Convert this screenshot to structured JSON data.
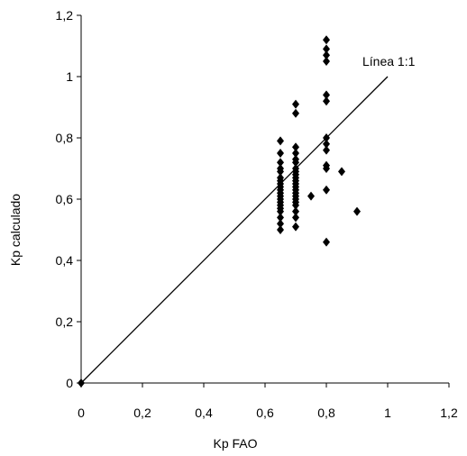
{
  "chart_data": {
    "type": "scatter",
    "title": "",
    "xlabel": "Kp FAO",
    "ylabel": "Kp calculado",
    "xlim": [
      0,
      1.2
    ],
    "ylim": [
      0,
      1.2
    ],
    "xticks": [
      0,
      0.2,
      0.4,
      0.6,
      0.8,
      1,
      1.2
    ],
    "yticks": [
      0,
      0.2,
      0.4,
      0.6,
      0.8,
      1,
      1.2
    ],
    "xtick_labels": [
      "0",
      "0,2",
      "0,4",
      "0,6",
      "0,8",
      "1",
      "1,2"
    ],
    "ytick_labels": [
      "0",
      "0,2",
      "0,4",
      "0,6",
      "0,8",
      "1",
      "1,2"
    ],
    "grid": false,
    "marker": "diamond",
    "marker_color": "#000000",
    "reference_line": {
      "label": "Línea 1:1",
      "from": [
        0,
        0
      ],
      "to": [
        1,
        1
      ]
    },
    "points": [
      [
        0,
        0
      ],
      [
        0.65,
        0.79
      ],
      [
        0.65,
        0.75
      ],
      [
        0.65,
        0.72
      ],
      [
        0.65,
        0.7
      ],
      [
        0.65,
        0.69
      ],
      [
        0.65,
        0.67
      ],
      [
        0.65,
        0.66
      ],
      [
        0.65,
        0.65
      ],
      [
        0.65,
        0.64
      ],
      [
        0.65,
        0.63
      ],
      [
        0.65,
        0.62
      ],
      [
        0.65,
        0.61
      ],
      [
        0.65,
        0.6
      ],
      [
        0.65,
        0.59
      ],
      [
        0.65,
        0.58
      ],
      [
        0.65,
        0.57
      ],
      [
        0.65,
        0.56
      ],
      [
        0.65,
        0.54
      ],
      [
        0.65,
        0.52
      ],
      [
        0.65,
        0.5
      ],
      [
        0.7,
        0.91
      ],
      [
        0.7,
        0.88
      ],
      [
        0.7,
        0.77
      ],
      [
        0.7,
        0.75
      ],
      [
        0.7,
        0.73
      ],
      [
        0.7,
        0.72
      ],
      [
        0.7,
        0.7
      ],
      [
        0.7,
        0.69
      ],
      [
        0.7,
        0.68
      ],
      [
        0.7,
        0.67
      ],
      [
        0.7,
        0.66
      ],
      [
        0.7,
        0.65
      ],
      [
        0.7,
        0.64
      ],
      [
        0.7,
        0.63
      ],
      [
        0.7,
        0.62
      ],
      [
        0.7,
        0.61
      ],
      [
        0.7,
        0.6
      ],
      [
        0.7,
        0.59
      ],
      [
        0.7,
        0.58
      ],
      [
        0.7,
        0.56
      ],
      [
        0.7,
        0.54
      ],
      [
        0.7,
        0.51
      ],
      [
        0.75,
        0.61
      ],
      [
        0.8,
        1.12
      ],
      [
        0.8,
        1.09
      ],
      [
        0.8,
        1.07
      ],
      [
        0.8,
        1.05
      ],
      [
        0.8,
        0.94
      ],
      [
        0.8,
        0.92
      ],
      [
        0.8,
        0.8
      ],
      [
        0.8,
        0.78
      ],
      [
        0.8,
        0.76
      ],
      [
        0.8,
        0.71
      ],
      [
        0.8,
        0.7
      ],
      [
        0.8,
        0.63
      ],
      [
        0.8,
        0.46
      ],
      [
        0.85,
        0.69
      ],
      [
        0.9,
        0.56
      ]
    ]
  }
}
